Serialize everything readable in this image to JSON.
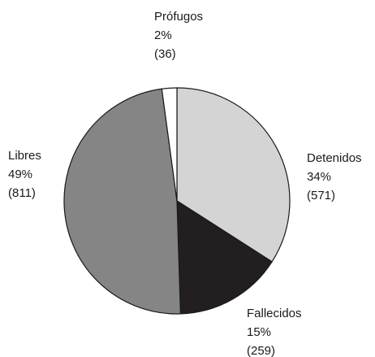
{
  "chart_data": {
    "type": "pie",
    "title": "",
    "slices": [
      {
        "name": "Detenidos",
        "percent_label": "34%",
        "count_label": "(571)",
        "value": 571,
        "color": "#d4d4d4"
      },
      {
        "name": "Fallecidos",
        "percent_label": "15%",
        "count_label": "(259)",
        "value": 259,
        "color": "#231f20"
      },
      {
        "name": "Libres",
        "percent_label": "49%",
        "count_label": "(811)",
        "value": 811,
        "color": "#858585"
      },
      {
        "name": "Prófugos",
        "percent_label": "2%",
        "count_label": "(36)",
        "value": 36,
        "color": "#ffffff"
      }
    ]
  }
}
